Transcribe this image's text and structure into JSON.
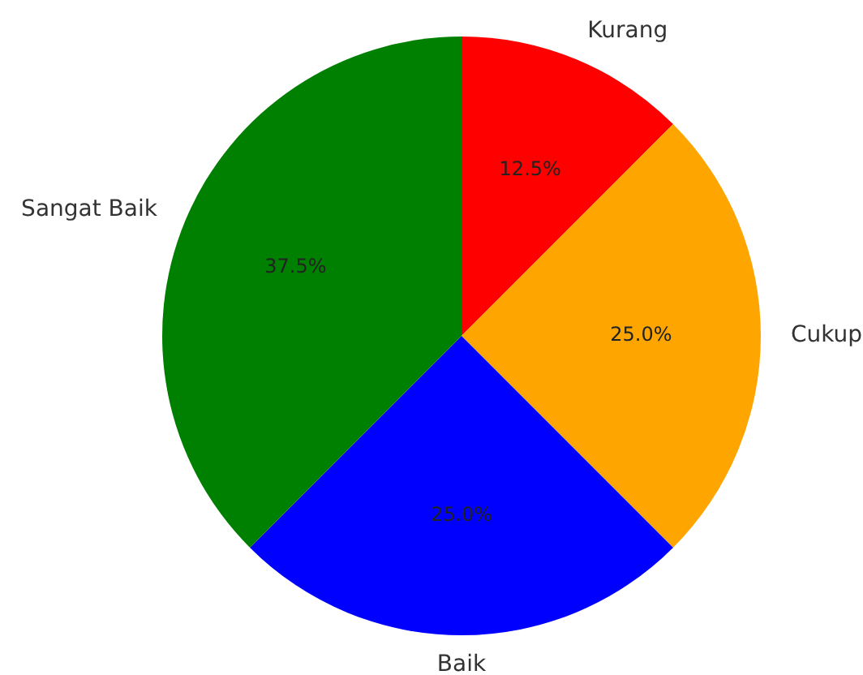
{
  "chart_data": {
    "type": "pie",
    "categories": [
      "Kurang",
      "Cukup",
      "Baik",
      "Sangat Baik"
    ],
    "values": [
      12.5,
      25.0,
      25.0,
      37.5
    ],
    "colors": [
      "#ff0000",
      "#ffa500",
      "#0000ff",
      "#008000"
    ],
    "value_labels": [
      "12.5%",
      "25.0%",
      "25.0%",
      "37.5%"
    ],
    "legend": false
  }
}
